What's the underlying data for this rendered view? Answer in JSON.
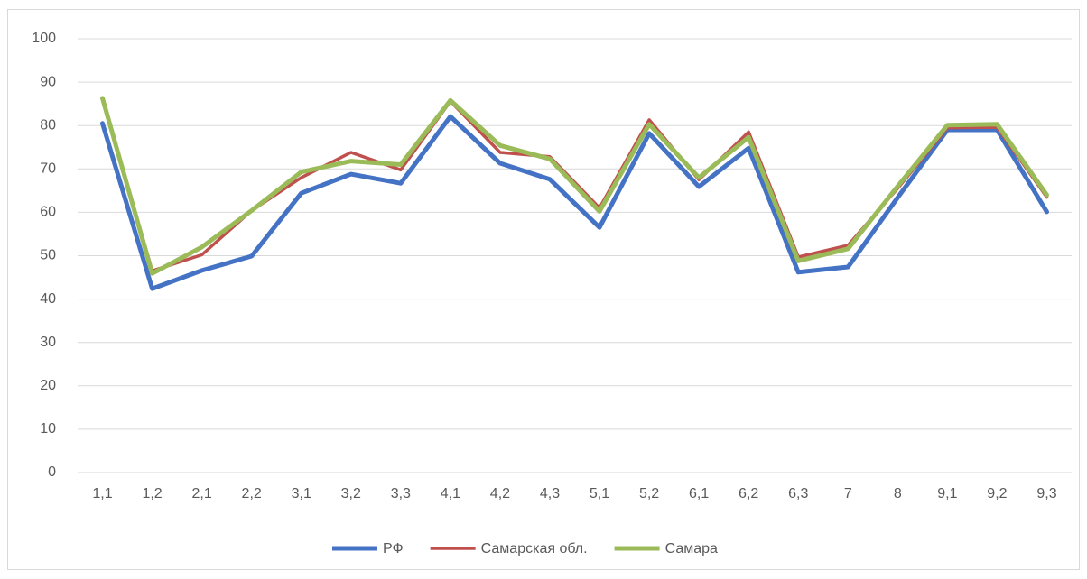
{
  "chart_data": {
    "type": "line",
    "categories": [
      "1,1",
      "1,2",
      "2,1",
      "2,2",
      "3,1",
      "3,2",
      "3,3",
      "4,1",
      "4,2",
      "4,3",
      "5,1",
      "5,2",
      "6,1",
      "6,2",
      "6,3",
      "7",
      "8",
      "9,1",
      "9,2",
      "9,3"
    ],
    "series": [
      {
        "name": "РФ",
        "color": "#4472c4",
        "values": [
          80.5,
          42.4,
          46.6,
          49.9,
          64.4,
          68.8,
          66.7,
          82.1,
          71.3,
          67.6,
          56.5,
          78.2,
          65.9,
          74.8,
          46.2,
          47.4,
          63.4,
          79,
          79,
          60.1
        ]
      },
      {
        "name": "Самарская обл.",
        "color": "#c0504d",
        "values": [
          86.3,
          46.5,
          50.2,
          60.4,
          68,
          73.8,
          69.8,
          85.6,
          73.8,
          72.8,
          61,
          81.3,
          67.5,
          78.5,
          49.7,
          52.4,
          65.5,
          79.5,
          79.6,
          63.5
        ]
      },
      {
        "name": "Самара",
        "color": "#9bbb59",
        "values": [
          86.3,
          45.9,
          52,
          60.4,
          69.3,
          71.8,
          71,
          85.8,
          75.4,
          72.3,
          60.2,
          80.3,
          68,
          77.3,
          48.8,
          51.6,
          66,
          80.1,
          80.3,
          64
        ]
      }
    ],
    "ylim": [
      0,
      100
    ],
    "yticks": [
      0,
      10,
      20,
      30,
      40,
      50,
      60,
      70,
      80,
      90,
      100
    ],
    "grid": true,
    "legend": "bottom"
  }
}
